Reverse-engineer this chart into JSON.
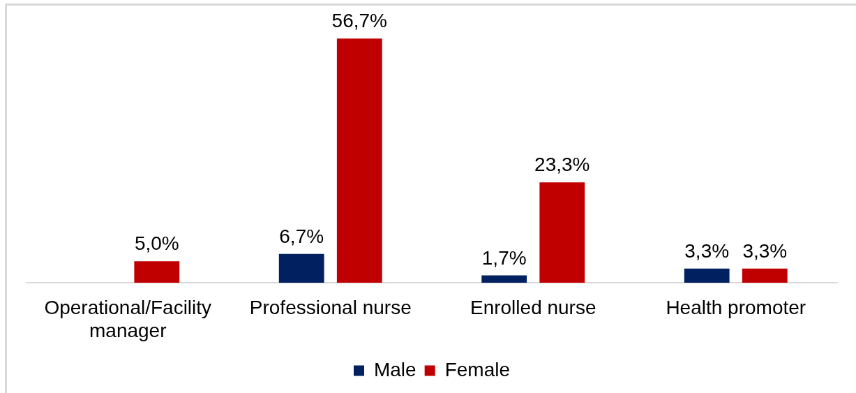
{
  "chart_data": {
    "type": "bar",
    "categories": [
      "Operational/Facility manager",
      "Professional nurse",
      "Enrolled nurse",
      "Health promoter"
    ],
    "series": [
      {
        "name": "Male",
        "color": "#002060",
        "values": [
          null,
          6.7,
          1.7,
          3.3
        ],
        "value_labels": [
          null,
          "6,7%",
          "1,7%",
          "3,3%"
        ]
      },
      {
        "name": "Female",
        "color": "#c00000",
        "values": [
          5.0,
          56.7,
          23.3,
          3.3
        ],
        "value_labels": [
          "5,0%",
          "56,7%",
          "23,3%",
          "3,3%"
        ]
      }
    ],
    "legend": "bottom"
  }
}
